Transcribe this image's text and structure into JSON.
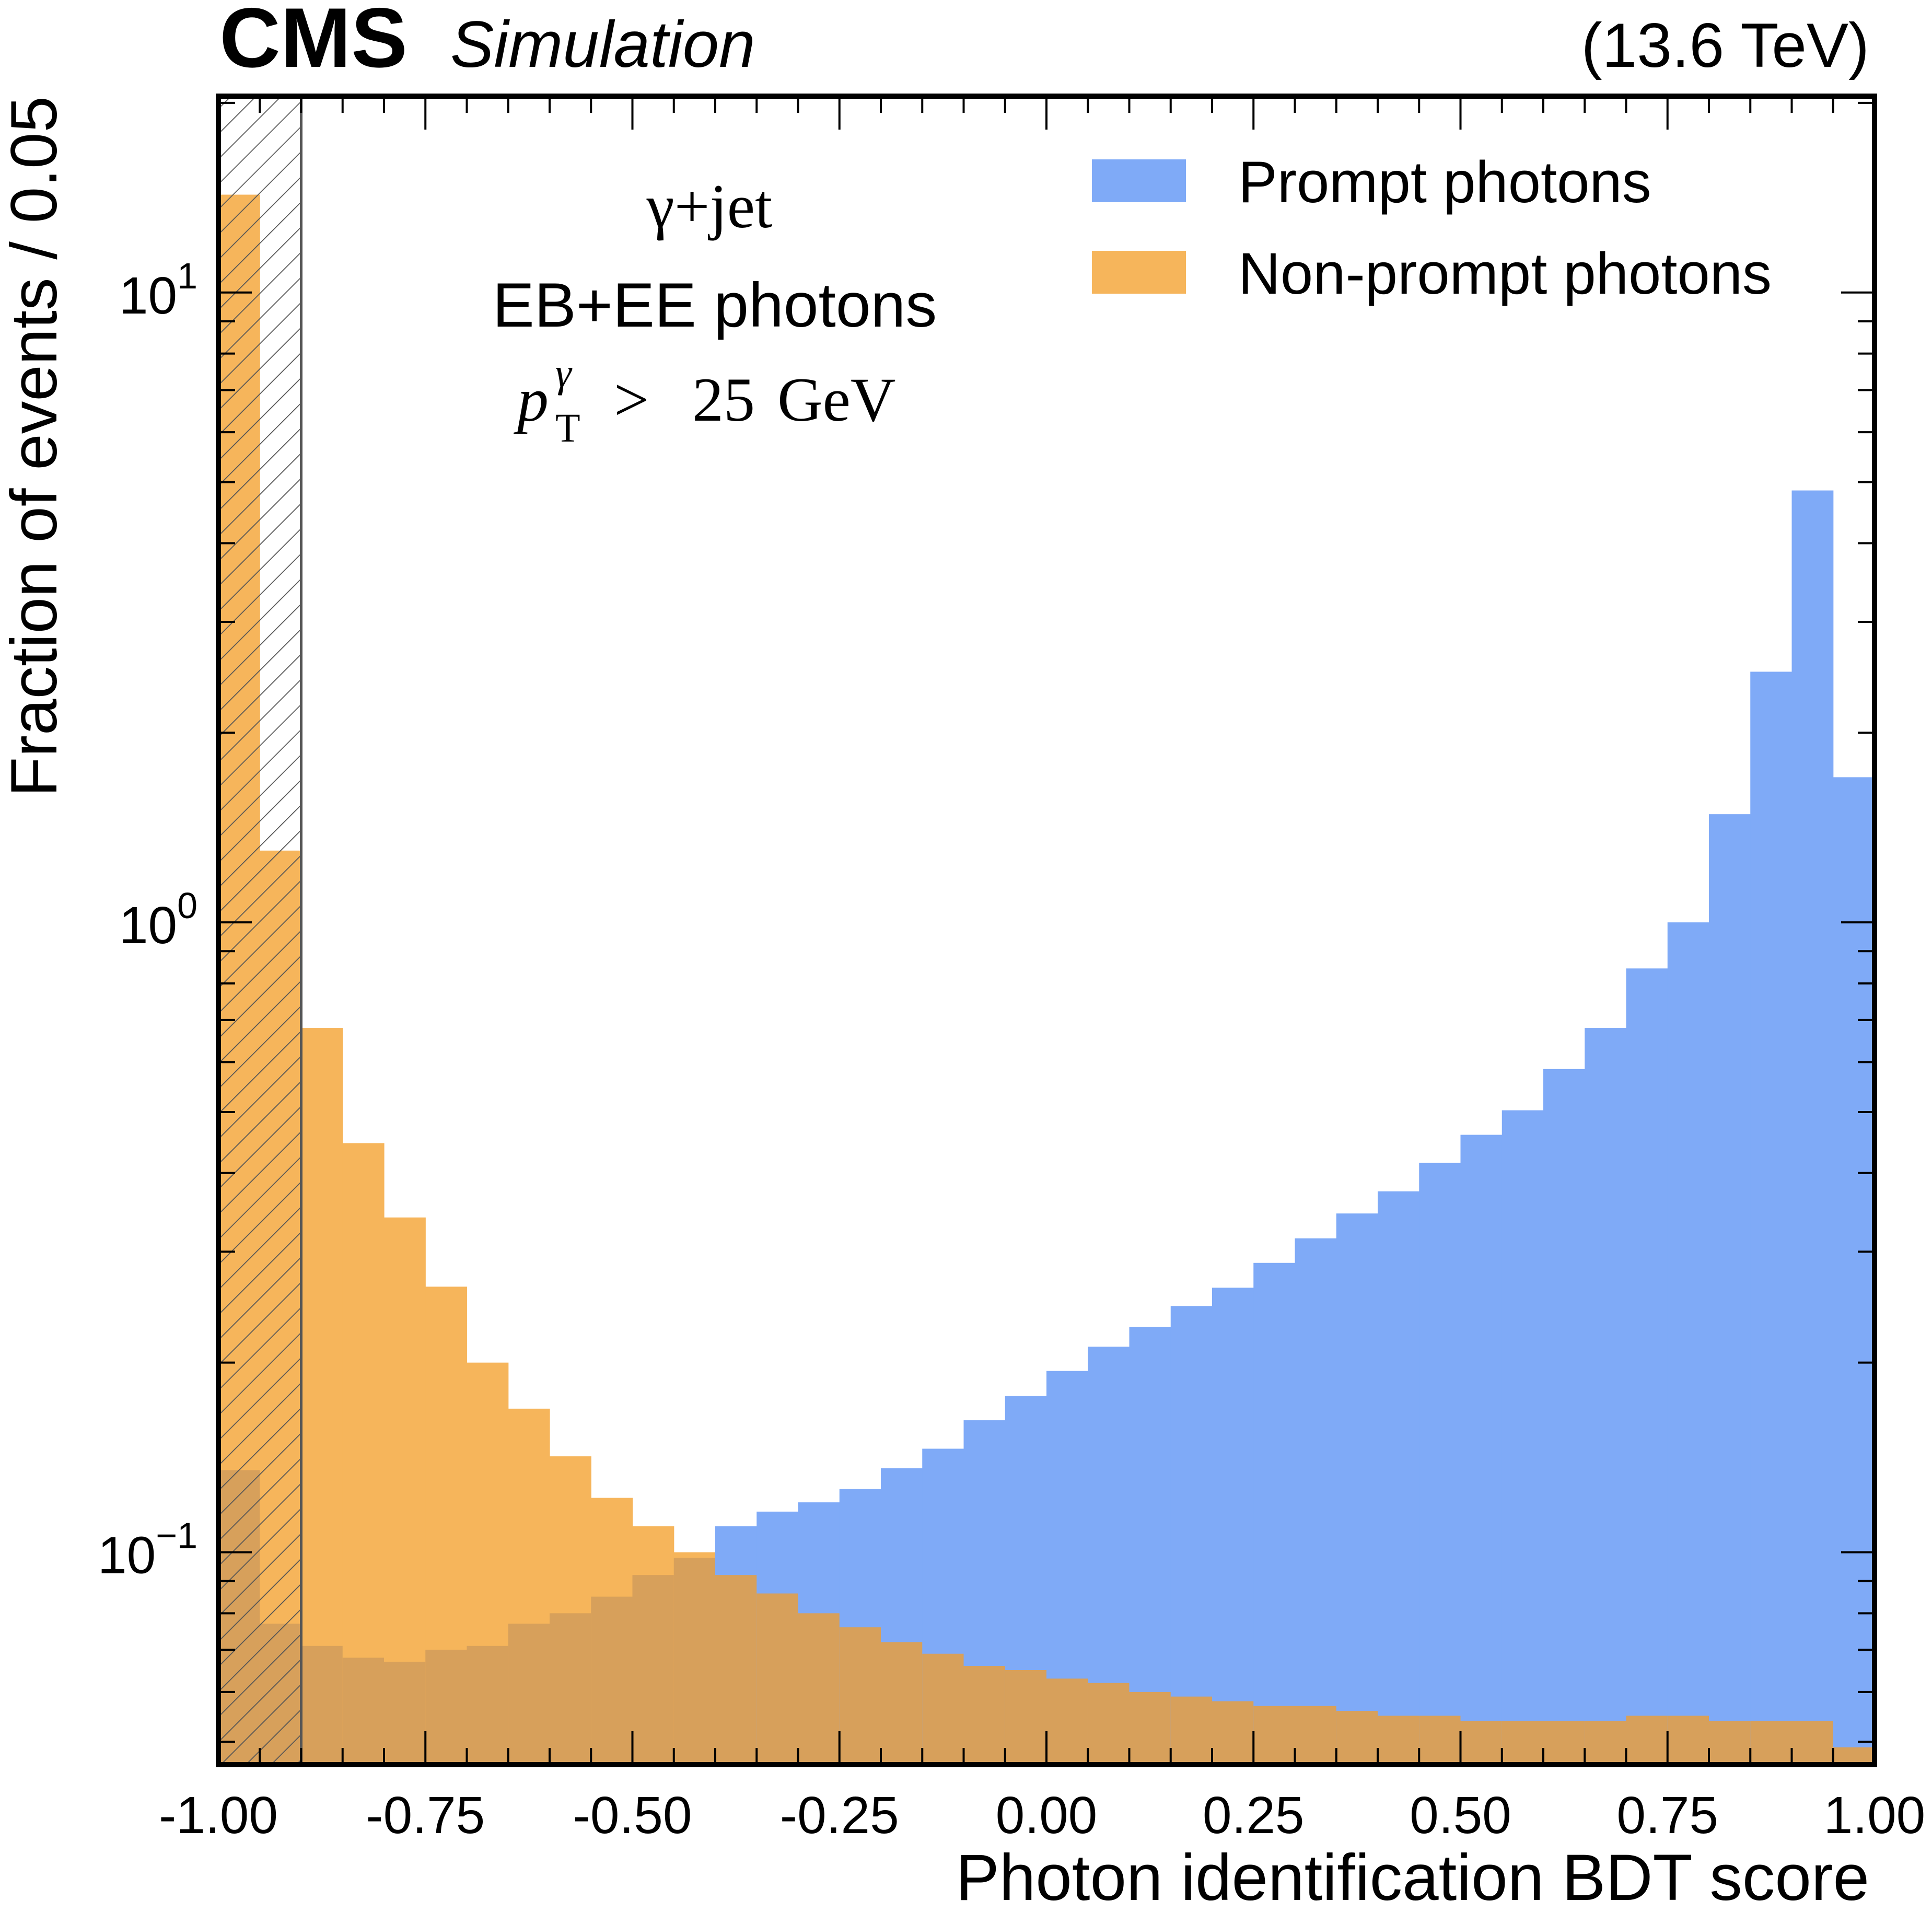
{
  "header": {
    "experiment": "CMS",
    "status": "Simulation",
    "energy": "(13.6 TeV)"
  },
  "annotations": {
    "process": "γ+jet",
    "region": "EB+EE photons",
    "cut_var": "p",
    "cut_sub": "T",
    "cut_sup": "γ",
    "cut_op": ">",
    "cut_value": "25",
    "cut_unit": "GeV"
  },
  "colors": {
    "prompt": "#7faaf7",
    "nonprompt": "#f6b55b",
    "overlap": "#d7a05b",
    "hatch": "#555555",
    "frame": "#000000"
  },
  "chart_data": {
    "type": "bar",
    "histtype": "stepfilled",
    "title": "",
    "xlabel": "Photon identification BDT score",
    "ylabel": "Fraction of events / 0.05",
    "xlim": [
      -1.0,
      1.0
    ],
    "ylim": [
      0.046,
      20.5
    ],
    "yscale": "log",
    "bin_width": 0.05,
    "bin_edges_start": -1.0,
    "x_ticks": [
      -1.0,
      -0.75,
      -0.5,
      -0.25,
      0.0,
      0.25,
      0.5,
      0.75,
      1.0
    ],
    "x_tick_labels": [
      "-1.00",
      "-0.75",
      "-0.50",
      "-0.25",
      "0.00",
      "0.25",
      "0.50",
      "0.75",
      "1.00"
    ],
    "y_ticks": [
      {
        "value": 10,
        "base": "10",
        "exp": "1"
      },
      {
        "value": 1,
        "base": "10",
        "exp": "0"
      },
      {
        "value": 0.1,
        "base": "10",
        "exp": "−1"
      }
    ],
    "excluded_region": [
      -1.0,
      -0.9
    ],
    "legend": {
      "location": "top-right",
      "entries": [
        "Prompt photons",
        "Non-prompt photons"
      ]
    },
    "series": [
      {
        "name": "Prompt photons",
        "color": "#7faaf7",
        "values": [
          0.135,
          0.077,
          0.071,
          0.068,
          0.067,
          0.07,
          0.071,
          0.077,
          0.08,
          0.085,
          0.092,
          0.098,
          0.11,
          0.116,
          0.12,
          0.126,
          0.136,
          0.146,
          0.162,
          0.177,
          0.194,
          0.212,
          0.228,
          0.246,
          0.263,
          0.288,
          0.315,
          0.345,
          0.374,
          0.415,
          0.46,
          0.503,
          0.585,
          0.68,
          0.845,
          1.0,
          1.485,
          2.5,
          4.85,
          1.7
        ]
      },
      {
        "name": "Non-prompt photons",
        "color": "#f6b55b",
        "values": [
          14.3,
          1.3,
          0.68,
          0.446,
          0.34,
          0.264,
          0.2,
          0.169,
          0.142,
          0.122,
          0.11,
          0.1,
          0.092,
          0.086,
          0.08,
          0.076,
          0.072,
          0.069,
          0.066,
          0.065,
          0.063,
          0.062,
          0.06,
          0.059,
          0.058,
          0.057,
          0.057,
          0.056,
          0.055,
          0.055,
          0.054,
          0.054,
          0.054,
          0.054,
          0.055,
          0.055,
          0.054,
          0.054,
          0.054,
          0.049
        ]
      }
    ]
  }
}
